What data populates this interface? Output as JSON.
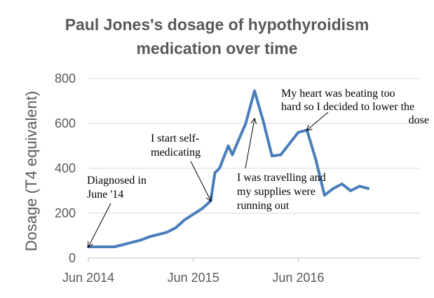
{
  "chart_data": {
    "type": "line",
    "title_lines": [
      "Paul Jones's dosage of hypothyroidism",
      "medication over time"
    ],
    "xlabel": "",
    "ylabel": "Dosage (T4 equivalent)",
    "ylim": [
      0,
      800
    ],
    "yticks": [
      0,
      200,
      400,
      600,
      800
    ],
    "xlim": [
      "2014-06",
      "2017-08"
    ],
    "xticks": [
      {
        "x": "2014-06",
        "label": "Jun 2014"
      },
      {
        "x": "2015-06",
        "label": "Jun 2015"
      },
      {
        "x": "2016-06",
        "label": "Jun 2016"
      }
    ],
    "grid": "horizontal",
    "line_color": "#4a7ebb",
    "series": [
      {
        "points": [
          [
            "2014-06",
            50
          ],
          [
            "2014-07",
            50
          ],
          [
            "2014-08",
            50
          ],
          [
            "2014-09",
            50
          ],
          [
            "2014-10",
            60
          ],
          [
            "2014-11",
            70
          ],
          [
            "2014-12",
            80
          ],
          [
            "2015-01",
            95
          ],
          [
            "2015-02",
            105
          ],
          [
            "2015-03",
            115
          ],
          [
            "2015-04",
            135
          ],
          [
            "2015-05",
            170
          ],
          [
            "2015-06",
            195
          ],
          [
            "2015-07",
            220
          ],
          [
            "2015-08",
            255
          ],
          [
            "2015-08-15",
            380
          ],
          [
            "2015-09",
            400
          ],
          [
            "2015-10",
            500
          ],
          [
            "2015-10-15",
            460
          ],
          [
            "2015-11",
            510
          ],
          [
            "2015-12",
            600
          ],
          [
            "2016-01",
            745
          ],
          [
            "2016-02",
            610
          ],
          [
            "2016-03",
            455
          ],
          [
            "2016-04",
            460
          ],
          [
            "2016-05",
            510
          ],
          [
            "2016-06",
            560
          ],
          [
            "2016-07",
            570
          ],
          [
            "2016-08",
            440
          ],
          [
            "2016-09",
            280
          ],
          [
            "2016-10",
            310
          ],
          [
            "2016-11",
            330
          ],
          [
            "2016-12",
            300
          ],
          [
            "2017-01",
            320
          ],
          [
            "2017-02",
            310
          ]
        ]
      }
    ],
    "annotations": [
      {
        "lines": [
          "Diagnosed in",
          "June '14"
        ],
        "target": [
          "2014-06",
          50
        ]
      },
      {
        "lines": [
          "I start self-",
          "medicating"
        ],
        "target": [
          "2015-08",
          255
        ]
      },
      {
        "lines": [
          "I was travelling and",
          "my supplies were",
          "running out"
        ],
        "target": [
          "2016-01",
          620
        ]
      },
      {
        "lines": [
          "My heart was beating too",
          "hard so I decided to lower the",
          "dose"
        ],
        "target": [
          "2016-07",
          570
        ]
      }
    ]
  }
}
